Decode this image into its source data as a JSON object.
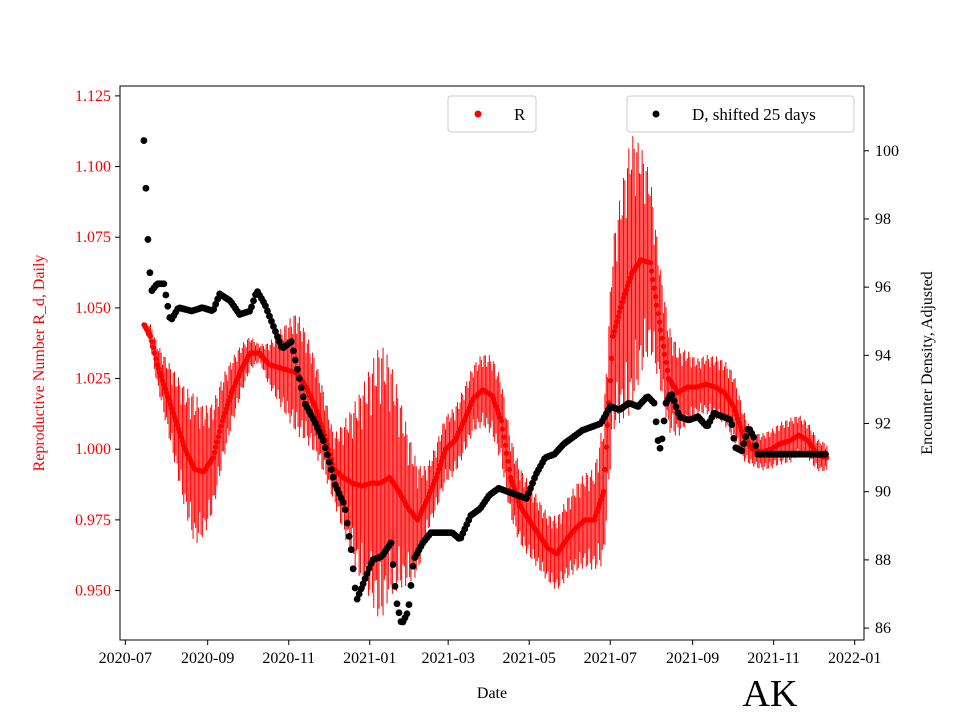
{
  "chart_data": {
    "type": "scatter",
    "state_label": "AK",
    "xlabel": "Date",
    "ylabel_left": "Reproductive Number R_d, Daily",
    "ylabel_right": "Encounter Density, Adjusted",
    "x_range": [
      "2020-06-27",
      "2022-01-08"
    ],
    "x_ticks": [
      "2020-07",
      "2020-09",
      "2020-11",
      "2021-01",
      "2021-03",
      "2021-05",
      "2021-07",
      "2021-09",
      "2021-11",
      "2022-01"
    ],
    "ylim_left": [
      0.9325,
      1.1285
    ],
    "yticks_left": [
      "0.950",
      "0.975",
      "1.000",
      "1.025",
      "1.050",
      "1.075",
      "1.100",
      "1.125"
    ],
    "ylim_right": [
      85.65,
      101.9
    ],
    "yticks_right": [
      "86",
      "88",
      "90",
      "92",
      "94",
      "96",
      "98",
      "100"
    ],
    "colors": {
      "R": "#ff0000",
      "D": "#000000"
    },
    "series": [
      {
        "name": "R",
        "color": "#ff0000",
        "points": [
          [
            "2020-07-15",
            1.044
          ],
          [
            "2020-07-20",
            1.04
          ],
          [
            "2020-07-25",
            1.03
          ],
          [
            "2020-08-01",
            1.02
          ],
          [
            "2020-08-08",
            1.01
          ],
          [
            "2020-08-15",
            1.0
          ],
          [
            "2020-08-22",
            0.993
          ],
          [
            "2020-08-29",
            0.992
          ],
          [
            "2020-09-05",
            0.997
          ],
          [
            "2020-09-12",
            1.01
          ],
          [
            "2020-09-19",
            1.02
          ],
          [
            "2020-09-26",
            1.028
          ],
          [
            "2020-10-03",
            1.034
          ],
          [
            "2020-10-10",
            1.034
          ],
          [
            "2020-10-17",
            1.03
          ],
          [
            "2020-10-24",
            1.029
          ],
          [
            "2020-10-31",
            1.028
          ],
          [
            "2020-11-07",
            1.027
          ],
          [
            "2020-11-14",
            1.022
          ],
          [
            "2020-11-21",
            1.015
          ],
          [
            "2020-11-28",
            1.005
          ],
          [
            "2020-12-05",
            0.993
          ],
          [
            "2020-12-12",
            0.99
          ],
          [
            "2020-12-19",
            0.988
          ],
          [
            "2020-12-26",
            0.987
          ],
          [
            "2021-01-02",
            0.988
          ],
          [
            "2021-01-09",
            0.988
          ],
          [
            "2021-01-16",
            0.99
          ],
          [
            "2021-01-23",
            0.985
          ],
          [
            "2021-01-30",
            0.979
          ],
          [
            "2021-02-06",
            0.975
          ],
          [
            "2021-02-13",
            0.982
          ],
          [
            "2021-02-20",
            0.99
          ],
          [
            "2021-02-27",
            1.0
          ],
          [
            "2021-03-06",
            1.003
          ],
          [
            "2021-03-13",
            1.01
          ],
          [
            "2021-03-20",
            1.018
          ],
          [
            "2021-03-27",
            1.021
          ],
          [
            "2021-04-03",
            1.019
          ],
          [
            "2021-04-10",
            1.01
          ],
          [
            "2021-04-17",
            0.99
          ],
          [
            "2021-04-24",
            0.98
          ],
          [
            "2021-05-01",
            0.975
          ],
          [
            "2021-05-08",
            0.97
          ],
          [
            "2021-05-15",
            0.965
          ],
          [
            "2021-05-22",
            0.963
          ],
          [
            "2021-05-29",
            0.968
          ],
          [
            "2021-06-05",
            0.972
          ],
          [
            "2021-06-12",
            0.975
          ],
          [
            "2021-06-19",
            0.975
          ],
          [
            "2021-06-26",
            0.985
          ],
          [
            "2021-07-03",
            1.04
          ],
          [
            "2021-07-10",
            1.052
          ],
          [
            "2021-07-17",
            1.062
          ],
          [
            "2021-07-24",
            1.067
          ],
          [
            "2021-07-31",
            1.066
          ],
          [
            "2021-08-07",
            1.045
          ],
          [
            "2021-08-14",
            1.025
          ],
          [
            "2021-08-21",
            1.02
          ],
          [
            "2021-08-28",
            1.022
          ],
          [
            "2021-09-04",
            1.022
          ],
          [
            "2021-09-11",
            1.023
          ],
          [
            "2021-09-18",
            1.022
          ],
          [
            "2021-09-25",
            1.02
          ],
          [
            "2021-10-02",
            1.015
          ],
          [
            "2021-10-09",
            1.005
          ],
          [
            "2021-10-16",
            1.0
          ],
          [
            "2021-10-23",
            0.999
          ],
          [
            "2021-10-30",
            1.0
          ],
          [
            "2021-11-06",
            1.002
          ],
          [
            "2021-11-13",
            1.003
          ],
          [
            "2021-11-20",
            1.005
          ],
          [
            "2021-11-27",
            1.003
          ],
          [
            "2021-12-04",
            0.998
          ],
          [
            "2021-12-11",
            0.997
          ]
        ],
        "band_width": [
          [
            "2020-07-15",
            0.001
          ],
          [
            "2020-08-01",
            0.012
          ],
          [
            "2020-08-22",
            0.027
          ],
          [
            "2020-09-19",
            0.012
          ],
          [
            "2020-10-10",
            0.003
          ],
          [
            "2020-11-07",
            0.022
          ],
          [
            "2020-12-05",
            0.012
          ],
          [
            "2021-01-09",
            0.05
          ],
          [
            "2021-02-13",
            0.012
          ],
          [
            "2021-03-20",
            0.012
          ],
          [
            "2021-04-10",
            0.015
          ],
          [
            "2021-05-15",
            0.012
          ],
          [
            "2021-06-19",
            0.018
          ],
          [
            "2021-07-17",
            0.05
          ],
          [
            "2021-08-07",
            0.022
          ],
          [
            "2021-09-04",
            0.01
          ],
          [
            "2021-10-02",
            0.012
          ],
          [
            "2021-10-16",
            0.006
          ],
          [
            "2021-11-13",
            0.008
          ],
          [
            "2021-12-11",
            0.005
          ]
        ]
      },
      {
        "name": "D, shifted 25 days",
        "color": "#000000",
        "points": [
          [
            "2020-07-15",
            100.3
          ],
          [
            "2020-07-16",
            99.4
          ],
          [
            "2020-07-17",
            98.4
          ],
          [
            "2020-07-18",
            97.4
          ],
          [
            "2020-07-19",
            96.6
          ],
          [
            "2020-07-21",
            95.9
          ],
          [
            "2020-07-25",
            96.1
          ],
          [
            "2020-07-30",
            96.1
          ],
          [
            "2020-08-04",
            95.0
          ],
          [
            "2020-08-10",
            95.4
          ],
          [
            "2020-08-20",
            95.3
          ],
          [
            "2020-08-28",
            95.4
          ],
          [
            "2020-09-05",
            95.3
          ],
          [
            "2020-09-10",
            95.8
          ],
          [
            "2020-09-18",
            95.6
          ],
          [
            "2020-09-25",
            95.2
          ],
          [
            "2020-10-03",
            95.3
          ],
          [
            "2020-10-08",
            95.9
          ],
          [
            "2020-10-14",
            95.5
          ],
          [
            "2020-10-21",
            94.8
          ],
          [
            "2020-10-27",
            94.2
          ],
          [
            "2020-11-03",
            94.4
          ],
          [
            "2020-11-08",
            93.5
          ],
          [
            "2020-11-13",
            92.6
          ],
          [
            "2020-11-20",
            92.1
          ],
          [
            "2020-11-27",
            91.5
          ],
          [
            "2020-12-02",
            90.8
          ],
          [
            "2020-12-06",
            90.2
          ],
          [
            "2020-12-13",
            89.6
          ],
          [
            "2020-12-18",
            88.3
          ],
          [
            "2020-12-22",
            86.8
          ],
          [
            "2020-12-27",
            87.3
          ],
          [
            "2021-01-03",
            88.0
          ],
          [
            "2021-01-10",
            88.1
          ],
          [
            "2021-01-17",
            88.5
          ],
          [
            "2021-01-21",
            86.8
          ],
          [
            "2021-01-25",
            86.1
          ],
          [
            "2021-01-30",
            86.5
          ],
          [
            "2021-02-03",
            88.0
          ],
          [
            "2021-02-10",
            88.5
          ],
          [
            "2021-02-16",
            88.8
          ],
          [
            "2021-02-24",
            88.8
          ],
          [
            "2021-03-04",
            88.8
          ],
          [
            "2021-03-10",
            88.6
          ],
          [
            "2021-03-18",
            89.3
          ],
          [
            "2021-03-25",
            89.5
          ],
          [
            "2021-04-01",
            89.9
          ],
          [
            "2021-04-08",
            90.1
          ],
          [
            "2021-04-15",
            90.0
          ],
          [
            "2021-04-22",
            89.9
          ],
          [
            "2021-04-29",
            89.8
          ],
          [
            "2021-05-06",
            90.5
          ],
          [
            "2021-05-13",
            91.0
          ],
          [
            "2021-05-20",
            91.1
          ],
          [
            "2021-05-27",
            91.4
          ],
          [
            "2021-06-03",
            91.6
          ],
          [
            "2021-06-10",
            91.8
          ],
          [
            "2021-06-17",
            91.9
          ],
          [
            "2021-06-24",
            92.0
          ],
          [
            "2021-07-01",
            92.5
          ],
          [
            "2021-07-08",
            92.4
          ],
          [
            "2021-07-15",
            92.6
          ],
          [
            "2021-07-22",
            92.5
          ],
          [
            "2021-07-29",
            92.8
          ],
          [
            "2021-08-03",
            92.6
          ],
          [
            "2021-08-06",
            91.5
          ],
          [
            "2021-08-08",
            91.2
          ],
          [
            "2021-08-12",
            92.6
          ],
          [
            "2021-08-16",
            92.9
          ],
          [
            "2021-08-22",
            92.2
          ],
          [
            "2021-08-29",
            92.1
          ],
          [
            "2021-09-05",
            92.2
          ],
          [
            "2021-09-12",
            91.9
          ],
          [
            "2021-09-17",
            92.3
          ],
          [
            "2021-09-24",
            92.2
          ],
          [
            "2021-09-30",
            92.1
          ],
          [
            "2021-10-03",
            91.3
          ],
          [
            "2021-10-08",
            91.2
          ],
          [
            "2021-10-13",
            91.9
          ],
          [
            "2021-10-17",
            91.6
          ],
          [
            "2021-10-20",
            91.1
          ],
          [
            "2021-10-25",
            91.1
          ],
          [
            "2021-11-01",
            91.1
          ],
          [
            "2021-11-10",
            91.1
          ],
          [
            "2021-11-20",
            91.1
          ],
          [
            "2021-11-30",
            91.1
          ],
          [
            "2021-12-10",
            91.1
          ]
        ]
      }
    ],
    "legend": [
      {
        "label": "R",
        "position": "top-center"
      },
      {
        "label": "D, shifted 25 days",
        "position": "top-right"
      }
    ]
  }
}
